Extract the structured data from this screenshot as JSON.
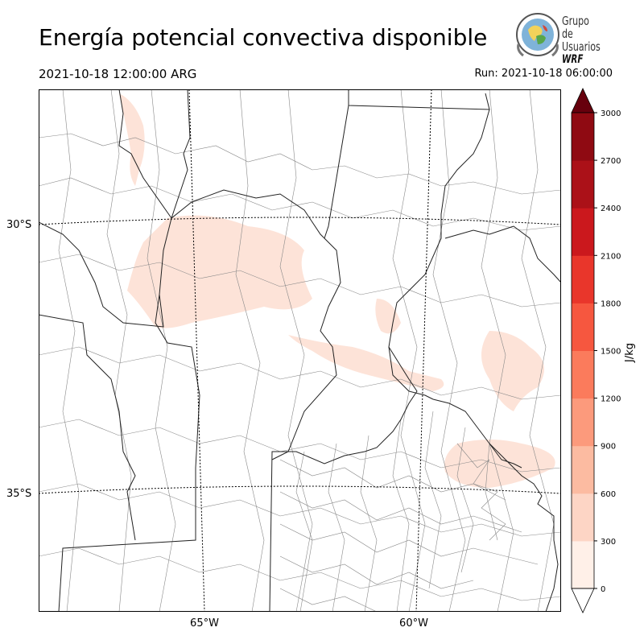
{
  "title": "Energía potencial convectiva disponible",
  "valid_time": "2021-10-18 12:00:00 ARG",
  "run_time": "Run: 2021-10-18 06:00:00",
  "logo": {
    "line1": "Grupo de",
    "line2": "Usuarios",
    "line3": "WRF"
  },
  "lat_labels": [
    "30°S",
    "35°S"
  ],
  "lon_labels": [
    "65°W",
    "60°W"
  ],
  "colorbar": {
    "unit": "J/kg",
    "ticks": [
      "0",
      "300",
      "600",
      "900",
      "1200",
      "1500",
      "1800",
      "2100",
      "2400",
      "2700",
      "3000"
    ],
    "colors": [
      "#fff0e8",
      "#fdd5c5",
      "#fcbba1",
      "#fc9a7c",
      "#fb7b5c",
      "#f6573f",
      "#e9362b",
      "#cb181d",
      "#ab1118",
      "#8f0a12",
      "#67000d"
    ],
    "extend": "both"
  }
}
